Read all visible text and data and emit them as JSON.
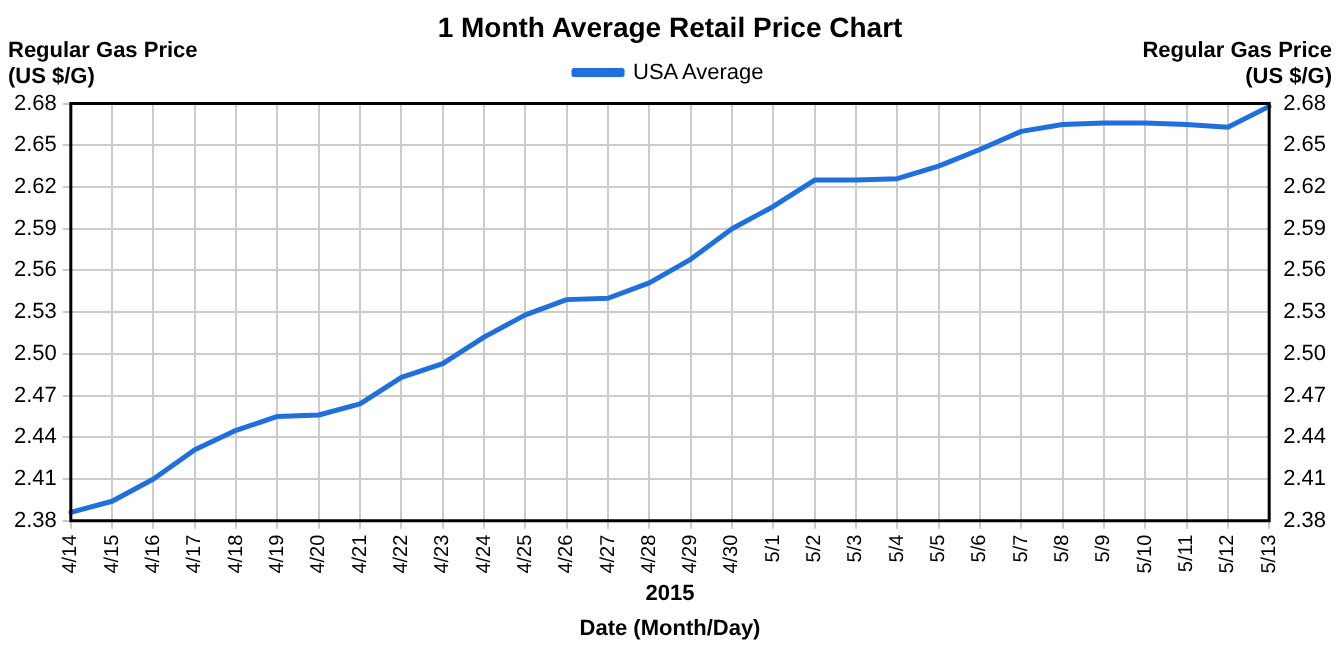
{
  "chart_data": {
    "type": "line",
    "title": "1 Month Average Retail Price Chart",
    "xlabel": "Date (Month/Day)",
    "ylabel": "Regular Gas Price (US $/G)",
    "y2label": "Regular Gas Price (US $/G)",
    "annotations": [
      "2015"
    ],
    "categories": [
      "4/14",
      "4/15",
      "4/16",
      "4/17",
      "4/18",
      "4/19",
      "4/20",
      "4/21",
      "4/22",
      "4/23",
      "4/24",
      "4/25",
      "4/26",
      "4/27",
      "4/28",
      "4/29",
      "4/30",
      "5/1",
      "5/2",
      "5/3",
      "5/4",
      "5/5",
      "5/6",
      "5/7",
      "5/8",
      "5/9",
      "5/10",
      "5/11",
      "5/12",
      "5/13"
    ],
    "series": [
      {
        "name": "USA Average",
        "color": "#1f6fdc",
        "values": [
          2.386,
          2.394,
          2.41,
          2.431,
          2.445,
          2.455,
          2.456,
          2.464,
          2.483,
          2.493,
          2.512,
          2.528,
          2.539,
          2.54,
          2.551,
          2.568,
          2.59,
          2.606,
          2.625,
          2.625,
          2.626,
          2.635,
          2.647,
          2.66,
          2.665,
          2.666,
          2.666,
          2.665,
          2.663,
          2.678
        ]
      }
    ],
    "ylim": [
      2.38,
      2.68
    ],
    "yticks": [
      2.38,
      2.41,
      2.44,
      2.47,
      {
        "value": 2.5,
        "label": "2.50"
      },
      2.53,
      2.56,
      2.59,
      2.62,
      2.65,
      2.68
    ],
    "y2lim": [
      2.38,
      2.68
    ],
    "y2ticks": [
      2.38,
      2.41,
      2.44,
      2.47,
      {
        "value": 2.5,
        "label": "2.50"
      },
      2.53,
      2.56,
      2.59,
      2.62,
      2.65,
      2.68
    ],
    "grid": true,
    "legend": "top",
    "marker": "none",
    "line_style": "solid"
  }
}
